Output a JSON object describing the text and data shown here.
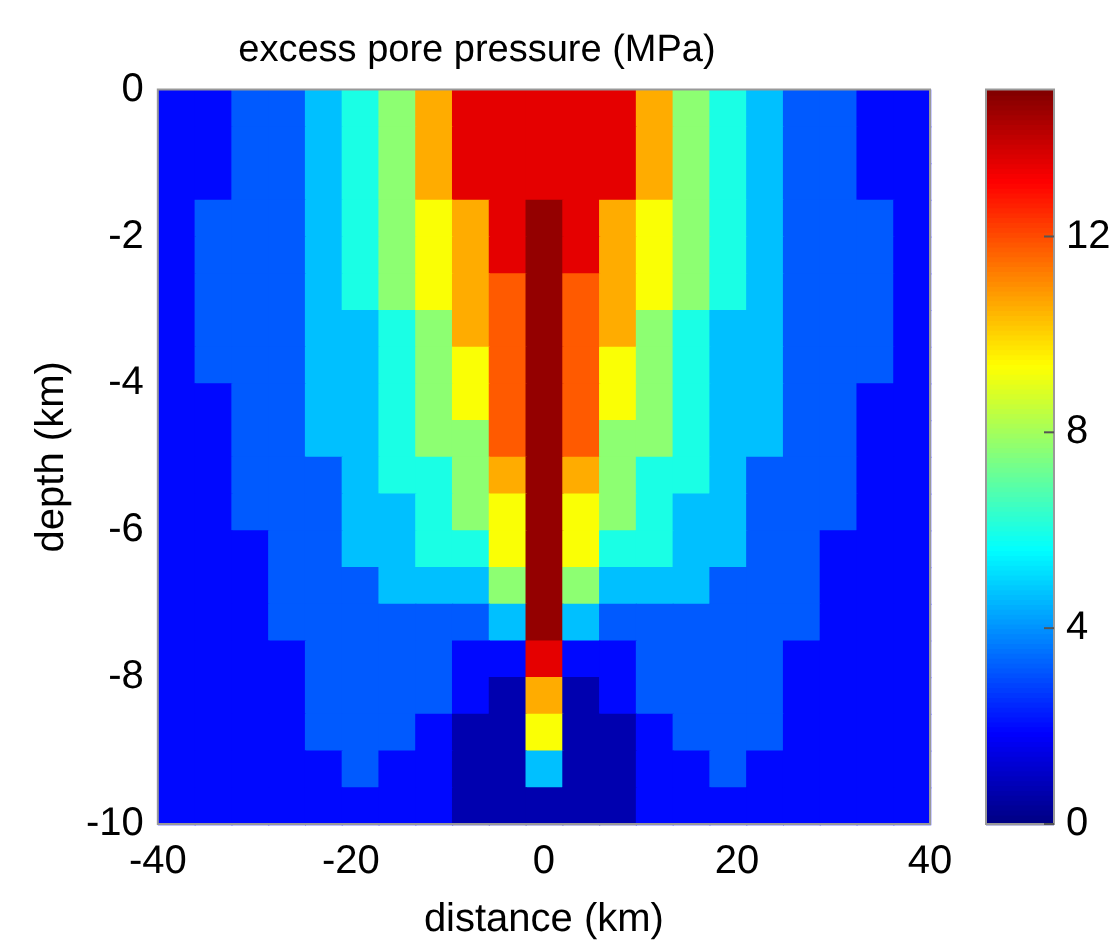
{
  "chart_data": {
    "type": "heatmap",
    "title": "excess pore pressure (MPa)",
    "xlabel": "distance (km)",
    "ylabel": "depth (km)",
    "xlim": [
      -40,
      40
    ],
    "ylim": [
      -10,
      0
    ],
    "xticks": [
      -40,
      -20,
      0,
      20,
      40
    ],
    "yticks": [
      -10,
      -8,
      -6,
      -4,
      -2,
      0
    ],
    "clim": [
      0,
      15
    ],
    "cticks": [
      0,
      4,
      8,
      12
    ],
    "grid": false,
    "cells": [
      [
        2,
        2,
        3.2,
        3.2,
        4.7,
        6,
        7.7,
        10.6,
        13.5,
        13.5,
        13.5,
        13.5,
        13.5,
        10.6,
        7.7,
        6,
        4.7,
        3.2,
        3.2,
        2,
        2
      ],
      [
        2,
        2,
        3.2,
        3.2,
        4.7,
        6,
        7.7,
        10.6,
        13.5,
        13.5,
        13.5,
        13.5,
        13.5,
        10.6,
        7.7,
        6,
        4.7,
        3.2,
        3.2,
        2,
        2
      ],
      [
        2,
        2,
        3.2,
        3.2,
        4.7,
        6,
        7.7,
        10.6,
        13.5,
        13.5,
        13.5,
        13.5,
        13.5,
        10.6,
        7.7,
        6,
        4.7,
        3.2,
        3.2,
        2,
        2
      ],
      [
        2,
        3.2,
        3.2,
        3.2,
        4.7,
        6,
        7.7,
        9.3,
        10.6,
        13.5,
        14.7,
        13.5,
        10.6,
        9.3,
        7.7,
        6,
        4.7,
        3.2,
        3.2,
        3.2,
        2
      ],
      [
        2,
        3.2,
        3.2,
        3.2,
        4.7,
        6,
        7.7,
        9.3,
        10.6,
        13.5,
        14.7,
        13.5,
        10.6,
        9.3,
        7.7,
        6,
        4.7,
        3.2,
        3.2,
        3.2,
        2
      ],
      [
        2,
        3.2,
        3.2,
        3.2,
        4.7,
        6,
        7.7,
        9.3,
        10.6,
        11.8,
        14.7,
        11.8,
        10.6,
        9.3,
        7.7,
        6,
        4.7,
        3.2,
        3.2,
        3.2,
        2
      ],
      [
        2,
        3.2,
        3.2,
        3.2,
        4.7,
        4.7,
        6,
        7.7,
        10.6,
        11.8,
        14.7,
        11.8,
        10.6,
        7.7,
        6,
        4.7,
        4.7,
        3.2,
        3.2,
        3.2,
        2
      ],
      [
        2,
        3.2,
        3.2,
        3.2,
        4.7,
        4.7,
        6,
        7.7,
        9.3,
        11.8,
        14.7,
        11.8,
        9.3,
        7.7,
        6,
        4.7,
        4.7,
        3.2,
        3.2,
        3.2,
        2
      ],
      [
        2,
        2,
        3.2,
        3.2,
        4.7,
        4.7,
        6,
        7.7,
        9.3,
        11.8,
        14.7,
        11.8,
        9.3,
        7.7,
        6,
        4.7,
        4.7,
        3.2,
        3.2,
        2,
        2
      ],
      [
        2,
        2,
        3.2,
        3.2,
        4.7,
        4.7,
        6,
        7.7,
        7.7,
        11.8,
        14.7,
        11.8,
        7.7,
        7.7,
        6,
        4.7,
        4.7,
        3.2,
        3.2,
        2,
        2
      ],
      [
        2,
        2,
        3.2,
        3.2,
        3.2,
        4.7,
        6,
        6,
        7.7,
        10.6,
        14.7,
        10.6,
        7.7,
        6,
        6,
        4.7,
        3.2,
        3.2,
        3.2,
        2,
        2
      ],
      [
        2,
        2,
        3.2,
        3.2,
        3.2,
        4.7,
        4.7,
        6,
        7.7,
        9.3,
        14.7,
        9.3,
        7.7,
        6,
        4.7,
        4.7,
        3.2,
        3.2,
        3.2,
        2,
        2
      ],
      [
        2,
        2,
        2,
        3.2,
        3.2,
        4.7,
        4.7,
        6,
        6,
        9.3,
        14.7,
        9.3,
        6,
        6,
        4.7,
        4.7,
        3.2,
        3.2,
        2,
        2,
        2
      ],
      [
        2,
        2,
        2,
        3.2,
        3.2,
        3.2,
        4.7,
        4.7,
        4.7,
        7.7,
        14.7,
        7.7,
        4.7,
        4.7,
        4.7,
        3.2,
        3.2,
        3.2,
        2,
        2,
        2
      ],
      [
        2,
        2,
        2,
        3.2,
        3.2,
        3.2,
        3.2,
        3.2,
        3.2,
        4.7,
        14.7,
        4.7,
        3.2,
        3.2,
        3.2,
        3.2,
        3.2,
        3.2,
        2,
        2,
        2
      ],
      [
        2,
        2,
        2,
        2,
        3.2,
        3.2,
        3.2,
        3.2,
        2,
        2,
        13.5,
        2,
        2,
        3.2,
        3.2,
        3.2,
        3.2,
        2,
        2,
        2,
        2
      ],
      [
        2,
        2,
        2,
        2,
        3.2,
        3.2,
        3.2,
        3.2,
        2,
        0.7,
        10.6,
        0.7,
        2,
        3.2,
        3.2,
        3.2,
        3.2,
        2,
        2,
        2,
        2
      ],
      [
        2,
        2,
        2,
        2,
        3.2,
        3.2,
        3.2,
        2,
        0.7,
        0.7,
        9.3,
        0.7,
        0.7,
        2,
        3.2,
        3.2,
        3.2,
        2,
        2,
        2,
        2
      ],
      [
        2,
        2,
        2,
        2,
        2,
        3.2,
        2,
        2,
        0.7,
        0.7,
        4.7,
        0.7,
        0.7,
        2,
        2,
        3.2,
        2,
        2,
        2,
        2,
        2
      ],
      [
        2,
        2,
        2,
        2,
        2,
        2,
        2,
        2,
        0.7,
        0.7,
        0.7,
        0.7,
        0.7,
        2,
        2,
        2,
        2,
        2,
        2,
        2,
        2
      ]
    ]
  }
}
